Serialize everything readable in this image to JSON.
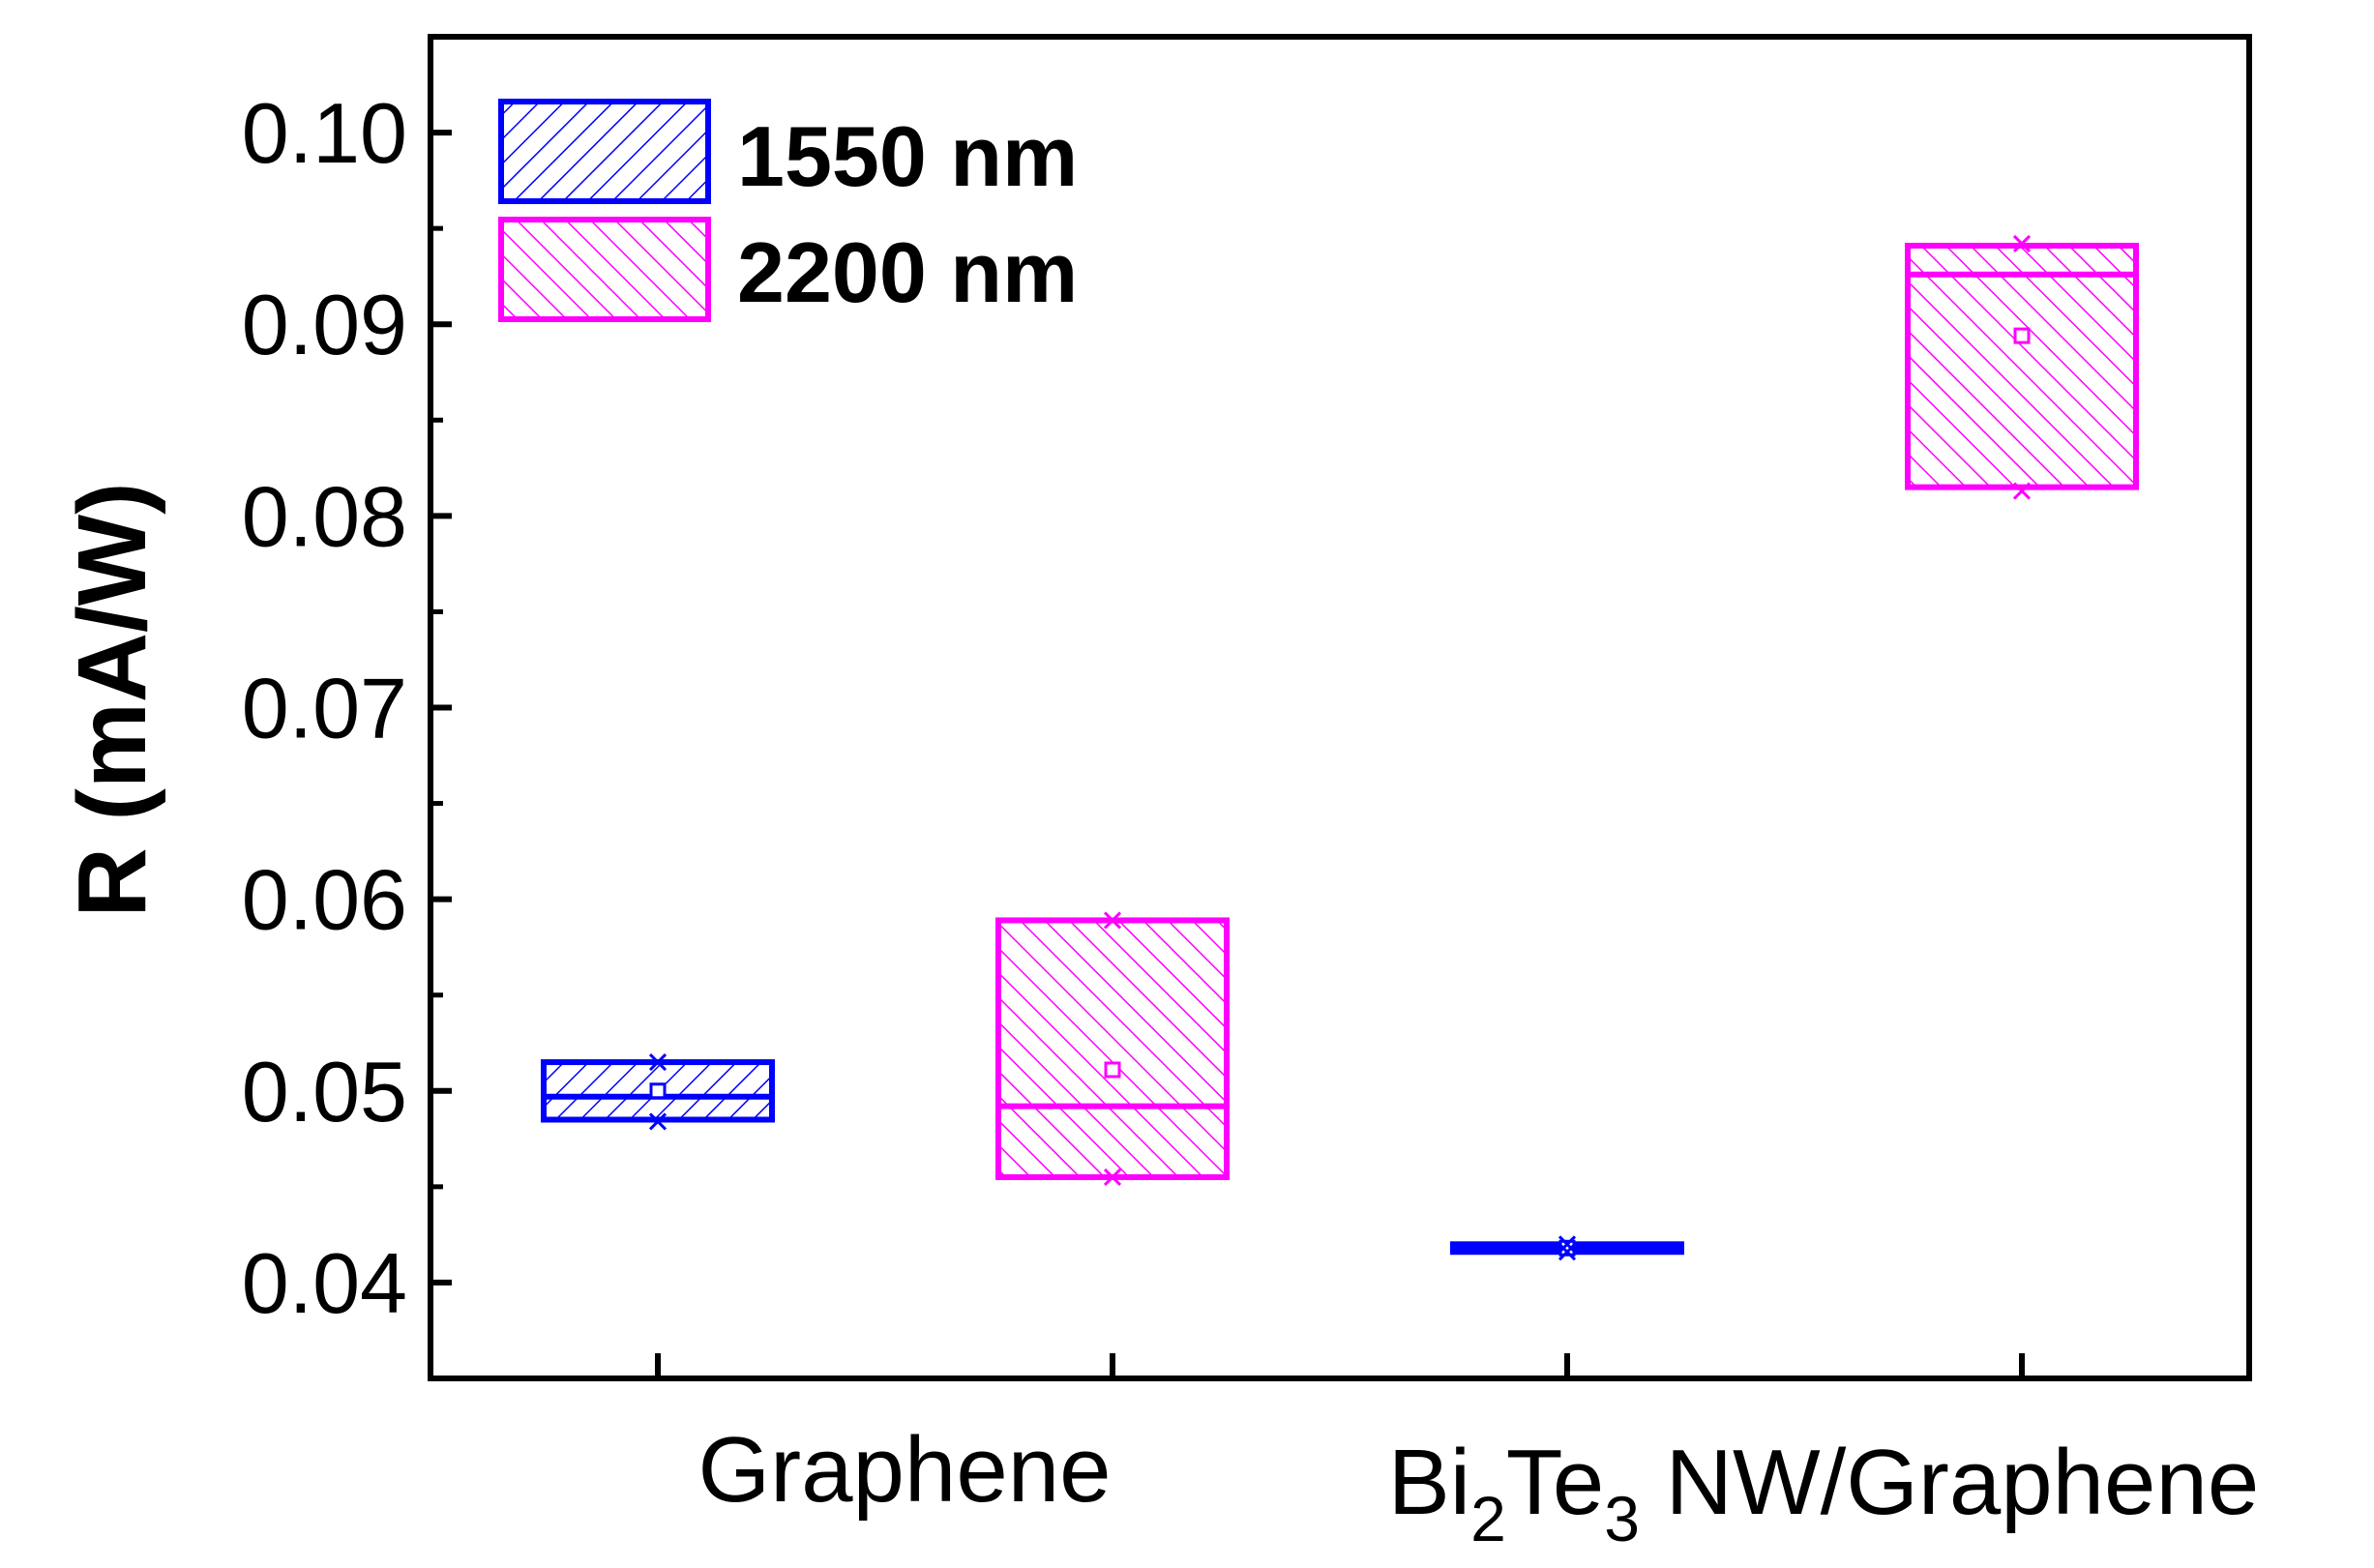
{
  "chart_data": {
    "type": "box",
    "ylabel": "R (mA/W)",
    "ylim": [
      0.035,
      0.105
    ],
    "yticks": [
      "0.04",
      "0.05",
      "0.06",
      "0.07",
      "0.08",
      "0.09",
      "0.10"
    ],
    "ytick_values": [
      0.04,
      0.05,
      0.06,
      0.07,
      0.08,
      0.09,
      0.1
    ],
    "x_groups": [
      {
        "label": "Graphene"
      },
      {
        "label_main": "Bi",
        "label_sub1": "2",
        "label_mid": "Te",
        "label_sub2": "3",
        "label_tail": " NW/Graphene"
      }
    ],
    "series": [
      {
        "name": "1550 nm",
        "color": "#0000ff",
        "hatch": "backslash",
        "boxes": [
          {
            "group": 0,
            "q1": 0.0485,
            "median": 0.0497,
            "q3": 0.0515,
            "mean": 0.05,
            "min": 0.0484,
            "max": 0.0515
          },
          {
            "group": 1,
            "q1": 0.0416,
            "median": 0.0418,
            "q3": 0.042,
            "mean": 0.0418,
            "min": 0.0416,
            "max": 0.042
          }
        ]
      },
      {
        "name": "2200 nm",
        "color": "#ff00ff",
        "hatch": "slash",
        "boxes": [
          {
            "group": 0,
            "q1": 0.0455,
            "median": 0.0492,
            "q3": 0.0589,
            "mean": 0.0511,
            "min": 0.0455,
            "max": 0.0589
          },
          {
            "group": 1,
            "q1": 0.0815,
            "median": 0.0926,
            "q3": 0.0941,
            "mean": 0.0894,
            "min": 0.0813,
            "max": 0.0942
          }
        ]
      }
    ],
    "legend_position": "top-left",
    "grid": false
  }
}
